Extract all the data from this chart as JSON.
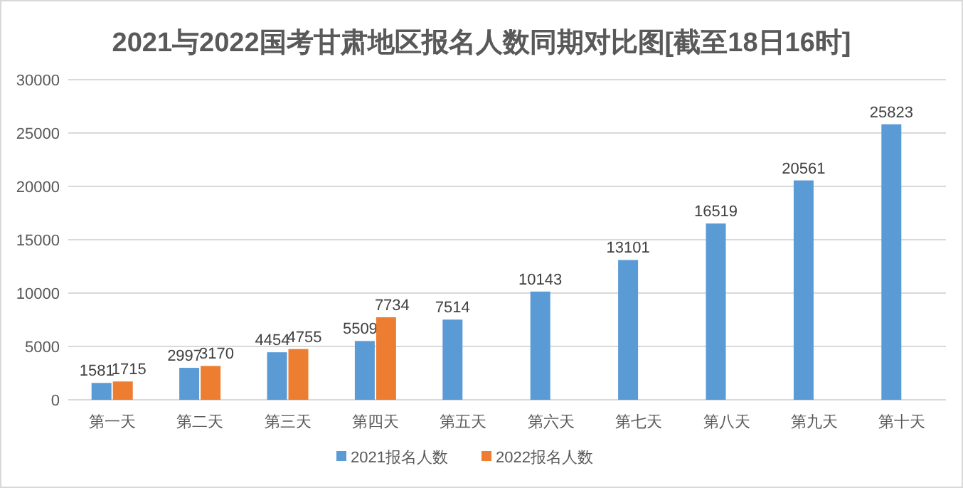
{
  "chart_data": {
    "type": "bar",
    "title": "2021与2022国考甘肃地区报名人数同期对比图[截至18日16时]",
    "categories": [
      "第一天",
      "第二天",
      "第三天",
      "第四天",
      "第五天",
      "第六天",
      "第七天",
      "第八天",
      "第九天",
      "第十天"
    ],
    "series": [
      {
        "name": "2021报名人数",
        "color": "#5b9bd5",
        "values": [
          1581,
          2997,
          4454,
          5509,
          7514,
          10143,
          13101,
          16519,
          20561,
          25823
        ]
      },
      {
        "name": "2022报名人数",
        "color": "#ed7d31",
        "values": [
          1715,
          3170,
          4755,
          7734,
          null,
          null,
          null,
          null,
          null,
          null
        ]
      }
    ],
    "ylim": [
      0,
      30000
    ],
    "yticks": [
      0,
      5000,
      10000,
      15000,
      20000,
      25000,
      30000
    ],
    "grid": "y",
    "legend": "bottom",
    "data_labels": true
  }
}
